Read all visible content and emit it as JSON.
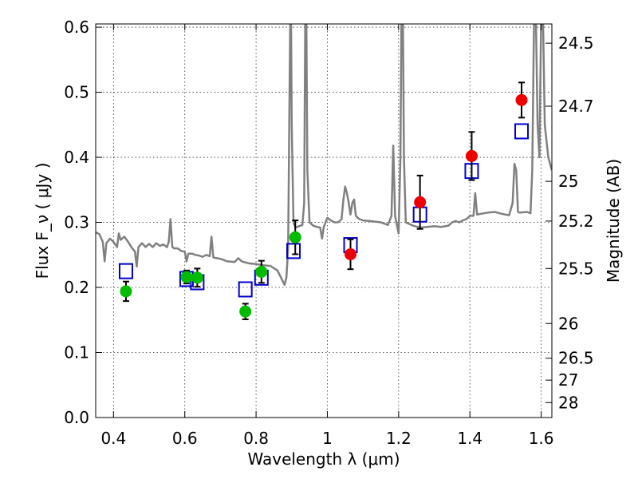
{
  "chart_data": {
    "type": "scatter",
    "xlabel": "Wavelength  λ (μm)",
    "ylabel": "Flux  F_ν  ( μJy )",
    "ylabel_right": "Magnitude (AB)",
    "xlim": [
      0.35,
      1.63
    ],
    "ylim": [
      0.0,
      0.605
    ],
    "grid": true,
    "x_ticks": [
      0.4,
      0.6,
      0.8,
      1.0,
      1.2,
      1.4,
      1.6
    ],
    "x_tick_labels": [
      "0.4",
      "0.6",
      "0.8",
      "1",
      "1.2",
      "1.4",
      "1.6"
    ],
    "y_ticks": [
      0.0,
      0.1,
      0.2,
      0.3,
      0.4,
      0.5,
      0.6
    ],
    "y_tick_labels": [
      "0.0",
      "0.1",
      "0.2",
      "0.3",
      "0.4",
      "0.5",
      "0.6"
    ],
    "y2_ticks": [
      {
        "label": "24.5",
        "flux": 0.5754
      },
      {
        "label": "24.7",
        "flux": 0.4786
      },
      {
        "label": "25",
        "flux": 0.3631
      },
      {
        "label": "25.2",
        "flux": 0.302
      },
      {
        "label": "25.5",
        "flux": 0.2291
      },
      {
        "label": "26",
        "flux": 0.1445
      },
      {
        "label": "26.5",
        "flux": 0.0912
      },
      {
        "label": "27",
        "flux": 0.0575
      },
      {
        "label": "28",
        "flux": 0.0229
      }
    ],
    "series": [
      {
        "marker": "line",
        "color": "#808080",
        "points": [
          [
            0.35,
            0.285
          ],
          [
            0.36,
            0.282
          ],
          [
            0.37,
            0.27
          ],
          [
            0.375,
            0.24
          ],
          [
            0.38,
            0.268
          ],
          [
            0.39,
            0.275
          ],
          [
            0.4,
            0.27
          ],
          [
            0.41,
            0.262
          ],
          [
            0.415,
            0.283
          ],
          [
            0.42,
            0.273
          ],
          [
            0.43,
            0.278
          ],
          [
            0.44,
            0.271
          ],
          [
            0.45,
            0.262
          ],
          [
            0.46,
            0.255
          ],
          [
            0.465,
            0.232
          ],
          [
            0.47,
            0.262
          ],
          [
            0.48,
            0.268
          ],
          [
            0.49,
            0.262
          ],
          [
            0.5,
            0.267
          ],
          [
            0.51,
            0.262
          ],
          [
            0.52,
            0.268
          ],
          [
            0.53,
            0.264
          ],
          [
            0.54,
            0.266
          ],
          [
            0.55,
            0.262
          ],
          [
            0.555,
            0.27
          ],
          [
            0.56,
            0.305
          ],
          [
            0.565,
            0.262
          ],
          [
            0.57,
            0.26
          ],
          [
            0.58,
            0.26
          ],
          [
            0.59,
            0.256
          ],
          [
            0.6,
            0.255
          ],
          [
            0.605,
            0.24
          ],
          [
            0.61,
            0.252
          ],
          [
            0.62,
            0.252
          ],
          [
            0.63,
            0.25
          ],
          [
            0.64,
            0.249
          ],
          [
            0.65,
            0.247
          ],
          [
            0.66,
            0.25
          ],
          [
            0.67,
            0.248
          ],
          [
            0.675,
            0.278
          ],
          [
            0.68,
            0.246
          ],
          [
            0.69,
            0.245
          ],
          [
            0.7,
            0.244
          ],
          [
            0.72,
            0.24
          ],
          [
            0.74,
            0.239
          ],
          [
            0.75,
            0.245
          ],
          [
            0.76,
            0.24
          ],
          [
            0.78,
            0.237
          ],
          [
            0.8,
            0.236
          ],
          [
            0.82,
            0.234
          ],
          [
            0.84,
            0.233
          ],
          [
            0.86,
            0.226
          ],
          [
            0.87,
            0.215
          ],
          [
            0.88,
            0.204
          ],
          [
            0.885,
            0.215
          ],
          [
            0.89,
            0.26
          ],
          [
            0.893,
            0.45
          ],
          [
            0.896,
            0.62
          ],
          [
            0.898,
            0.62
          ],
          [
            0.9,
            0.45
          ],
          [
            0.905,
            0.3
          ],
          [
            0.91,
            0.292
          ],
          [
            0.92,
            0.294
          ],
          [
            0.93,
            0.296
          ],
          [
            0.935,
            0.33
          ],
          [
            0.938,
            0.62
          ],
          [
            0.941,
            0.62
          ],
          [
            0.944,
            0.38
          ],
          [
            0.95,
            0.3
          ],
          [
            0.96,
            0.295
          ],
          [
            0.97,
            0.293
          ],
          [
            0.98,
            0.292
          ],
          [
            0.985,
            0.275
          ],
          [
            0.99,
            0.293
          ],
          [
            1.0,
            0.307
          ],
          [
            1.01,
            0.303
          ],
          [
            1.02,
            0.3
          ],
          [
            1.03,
            0.3
          ],
          [
            1.04,
            0.305
          ],
          [
            1.045,
            0.335
          ],
          [
            1.05,
            0.355
          ],
          [
            1.055,
            0.345
          ],
          [
            1.06,
            0.33
          ],
          [
            1.065,
            0.312
          ],
          [
            1.07,
            0.33
          ],
          [
            1.075,
            0.335
          ],
          [
            1.08,
            0.31
          ],
          [
            1.09,
            0.305
          ],
          [
            1.1,
            0.303
          ],
          [
            1.12,
            0.302
          ],
          [
            1.15,
            0.3
          ],
          [
            1.17,
            0.296
          ],
          [
            1.18,
            0.31
          ],
          [
            1.185,
            0.418
          ],
          [
            1.19,
            0.31
          ],
          [
            1.2,
            0.283
          ],
          [
            1.205,
            0.4
          ],
          [
            1.208,
            0.62
          ],
          [
            1.212,
            0.62
          ],
          [
            1.215,
            0.4
          ],
          [
            1.22,
            0.3
          ],
          [
            1.24,
            0.295
          ],
          [
            1.26,
            0.292
          ],
          [
            1.28,
            0.293
          ],
          [
            1.3,
            0.294
          ],
          [
            1.32,
            0.293
          ],
          [
            1.34,
            0.295
          ],
          [
            1.35,
            0.3
          ],
          [
            1.36,
            0.302
          ],
          [
            1.37,
            0.3
          ],
          [
            1.38,
            0.303
          ],
          [
            1.39,
            0.305
          ],
          [
            1.4,
            0.31
          ],
          [
            1.41,
            0.31
          ],
          [
            1.415,
            0.345
          ],
          [
            1.42,
            0.312
          ],
          [
            1.43,
            0.313
          ],
          [
            1.45,
            0.315
          ],
          [
            1.47,
            0.316
          ],
          [
            1.49,
            0.313
          ],
          [
            1.5,
            0.312
          ],
          [
            1.51,
            0.311
          ],
          [
            1.52,
            0.33
          ],
          [
            1.525,
            0.39
          ],
          [
            1.53,
            0.38
          ],
          [
            1.535,
            0.316
          ],
          [
            1.54,
            0.315
          ],
          [
            1.56,
            0.316
          ],
          [
            1.57,
            0.314
          ],
          [
            1.575,
            0.38
          ],
          [
            1.58,
            0.62
          ],
          [
            1.585,
            0.62
          ],
          [
            1.59,
            0.45
          ],
          [
            1.595,
            0.4
          ],
          [
            1.6,
            0.62
          ],
          [
            1.605,
            0.62
          ],
          [
            1.61,
            0.45
          ],
          [
            1.62,
            0.4
          ],
          [
            1.63,
            0.38
          ]
        ]
      },
      {
        "marker": "open-square",
        "color": "#0000cc",
        "points": [
          [
            0.435,
            0.225
          ],
          [
            0.605,
            0.213
          ],
          [
            0.635,
            0.208
          ],
          [
            0.77,
            0.197
          ],
          [
            0.815,
            0.215
          ],
          [
            0.905,
            0.256
          ],
          [
            1.065,
            0.265
          ],
          [
            1.26,
            0.312
          ],
          [
            1.405,
            0.379
          ],
          [
            1.545,
            0.44
          ]
        ]
      },
      {
        "marker": "filled-circle",
        "color": "#00bb00",
        "points": [
          [
            0.435,
            0.194,
            0.015
          ],
          [
            0.605,
            0.216,
            0.01
          ],
          [
            0.635,
            0.215,
            0.014
          ],
          [
            0.77,
            0.163,
            0.012
          ],
          [
            0.815,
            0.224,
            0.017
          ],
          [
            0.91,
            0.277,
            0.026
          ]
        ]
      },
      {
        "marker": "filled-circle",
        "color": "#ee0000",
        "points": [
          [
            1.065,
            0.251,
            0.023
          ],
          [
            1.26,
            0.331,
            0.041
          ],
          [
            1.405,
            0.402,
            0.037
          ],
          [
            1.545,
            0.488,
            0.027
          ]
        ]
      }
    ]
  }
}
